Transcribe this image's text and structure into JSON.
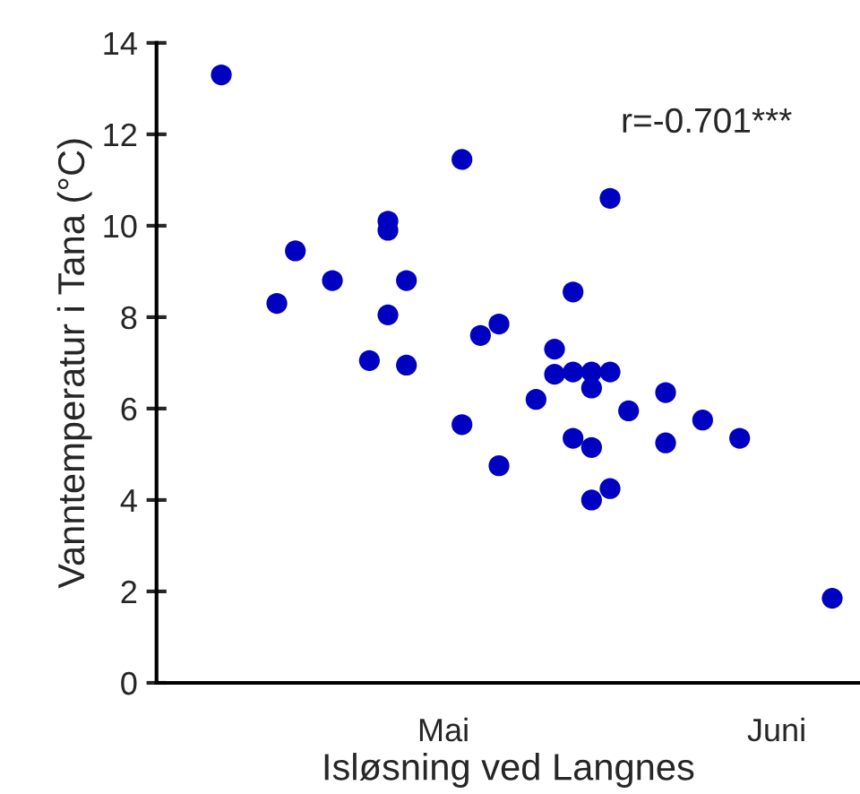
{
  "chart_data": {
    "type": "scatter",
    "xlabel": "Isløsning ved Langnes",
    "ylabel": "Vanntemperatur i Tana (°C)",
    "annotations": [
      "r=-0.701***"
    ],
    "categories": [
      null,
      null,
      null,
      null,
      null,
      null,
      null,
      null,
      null,
      null,
      null,
      null,
      null,
      null,
      null,
      "Mai",
      null,
      null,
      null,
      null,
      null,
      null,
      null,
      null,
      null,
      null,
      null,
      null,
      null,
      null,
      null,
      null,
      null,
      "Juni",
      null,
      null,
      null,
      null
    ],
    "ylim": [
      0,
      14
    ],
    "yticks": [
      0,
      2,
      4,
      6,
      8,
      10,
      12,
      14
    ],
    "grid": false,
    "legend": false,
    "marker": "circle",
    "series": [
      {
        "color": "#0000c0",
        "values": [
          null,
          null,
          null,
          13.3,
          null,
          null,
          8.3,
          9.45,
          null,
          8.8,
          null,
          7.05,
          10.1,
          8.8,
          null,
          null,
          11.45,
          7.6,
          7.85,
          null,
          6.2,
          7.3,
          8.55,
          6.8,
          10.6,
          5.95,
          null,
          6.35,
          null,
          5.75,
          null,
          5.35,
          null,
          null,
          null,
          null,
          1.85,
          null
        ]
      },
      {
        "color": "#0000c0",
        "values": [
          null,
          null,
          null,
          null,
          null,
          null,
          null,
          null,
          null,
          null,
          null,
          null,
          9.9,
          6.95,
          null,
          null,
          5.65,
          null,
          4.75,
          null,
          null,
          6.75,
          6.8,
          6.45,
          6.8,
          null,
          null,
          5.25,
          null,
          null,
          null,
          null,
          null,
          null,
          null,
          null,
          null,
          null
        ]
      },
      {
        "color": "#0000c0",
        "values": [
          null,
          null,
          null,
          null,
          null,
          null,
          null,
          null,
          null,
          null,
          null,
          null,
          8.05,
          null,
          null,
          null,
          null,
          null,
          null,
          null,
          null,
          null,
          5.35,
          5.15,
          4.25,
          null,
          null,
          null,
          null,
          null,
          null,
          null,
          null,
          null,
          null,
          null,
          null,
          null
        ]
      },
      {
        "color": "#0000c0",
        "values": [
          null,
          null,
          null,
          null,
          null,
          null,
          null,
          null,
          null,
          null,
          null,
          null,
          null,
          null,
          null,
          null,
          null,
          null,
          null,
          null,
          null,
          null,
          null,
          4.0,
          null,
          null,
          null,
          null,
          null,
          null,
          null,
          null,
          null,
          null,
          null,
          null,
          null,
          null
        ]
      }
    ]
  }
}
